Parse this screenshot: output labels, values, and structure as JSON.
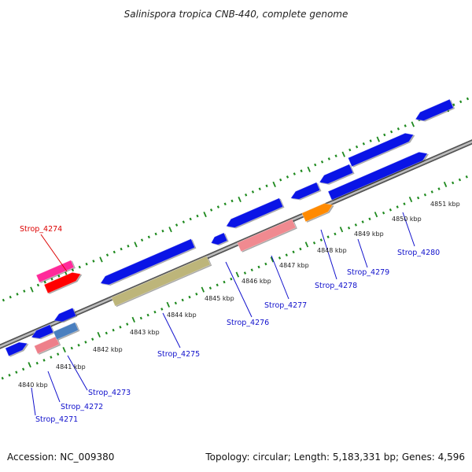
{
  "map": {
    "title": "Salinispora tropica CNB-440, complete genome",
    "accession": "Accession: NC_009380",
    "summary": "Topology: circular; Length: 5,183,331 bp; Genes: 4,596"
  },
  "colors": {
    "backbone": "#8c8c8c",
    "backbone_dark": "#555555",
    "tick": "#1f8a1f",
    "cds": "#0a14e6",
    "label_link": "#1010cc",
    "highlight_label": "#dd0000"
  },
  "ticks": [
    {
      "label": "4840 kbp"
    },
    {
      "label": "4841 kbp"
    },
    {
      "label": "4842 kbp"
    },
    {
      "label": "4843 kbp"
    },
    {
      "label": "4844 kbp"
    },
    {
      "label": "4845 kbp"
    },
    {
      "label": "4846 kbp"
    },
    {
      "label": "4847 kbp"
    },
    {
      "label": "4848 kbp"
    },
    {
      "label": "4849 kbp"
    },
    {
      "label": "4850 kbp"
    },
    {
      "label": "4851 kbp"
    }
  ],
  "gene_labels": [
    {
      "text": "Strop_4271"
    },
    {
      "text": "Strop_4272"
    },
    {
      "text": "Strop_4273"
    },
    {
      "text": "Strop_4274"
    },
    {
      "text": "Strop_4275"
    },
    {
      "text": "Strop_4276"
    },
    {
      "text": "Strop_4277"
    },
    {
      "text": "Strop_4278"
    },
    {
      "text": "Strop_4279"
    },
    {
      "text": "Strop_4280"
    }
  ]
}
